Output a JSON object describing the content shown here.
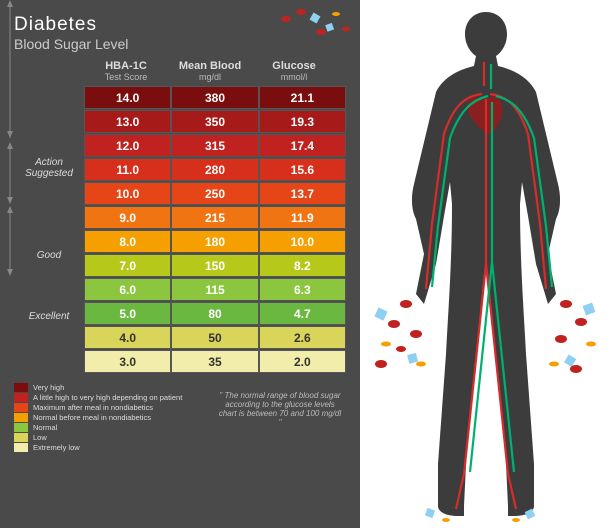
{
  "title": "Diabetes",
  "subtitle": "Blood Sugar Level",
  "columns": [
    {
      "h1": "HBA-1C",
      "h2": "Test Score"
    },
    {
      "h1": "Mean Blood",
      "h2": "mg/dl"
    },
    {
      "h1": "Glucose",
      "h2": "mmol/l"
    }
  ],
  "categories": [
    "Action\nSuggested",
    "Good",
    "Excellent"
  ],
  "rows": [
    {
      "v": [
        "14.0",
        "380",
        "21.1"
      ],
      "c": "#7a0d0d",
      "darkText": false
    },
    {
      "v": [
        "13.0",
        "350",
        "19.3"
      ],
      "c": "#a61a1a",
      "darkText": false
    },
    {
      "v": [
        "12.0",
        "315",
        "17.4"
      ],
      "c": "#c0231f",
      "darkText": false
    },
    {
      "v": [
        "11.0",
        "280",
        "15.6"
      ],
      "c": "#d6301d",
      "darkText": false
    },
    {
      "v": [
        "10.0",
        "250",
        "13.7"
      ],
      "c": "#e64517",
      "darkText": false
    },
    {
      "v": [
        "9.0",
        "215",
        "11.9"
      ],
      "c": "#f07512",
      "darkText": false
    },
    {
      "v": [
        "8.0",
        "180",
        "10.0"
      ],
      "c": "#f5a000",
      "darkText": false
    },
    {
      "v": [
        "7.0",
        "150",
        "8.2"
      ],
      "c": "#b6c91a",
      "darkText": false
    },
    {
      "v": [
        "6.0",
        "115",
        "6.3"
      ],
      "c": "#8cc63f",
      "darkText": false
    },
    {
      "v": [
        "5.0",
        "80",
        "4.7"
      ],
      "c": "#6bb840",
      "darkText": false
    },
    {
      "v": [
        "4.0",
        "50",
        "2.6"
      ],
      "c": "#d9d45a",
      "darkText": true
    },
    {
      "v": [
        "3.0",
        "35",
        "2.0"
      ],
      "c": "#f2edaa",
      "darkText": true
    }
  ],
  "legend": [
    {
      "c": "#7a0d0d",
      "label": "Very high"
    },
    {
      "c": "#c0231f",
      "label": "A little high to very high depending on patient"
    },
    {
      "c": "#e64517",
      "label": "Maximum after meal in nondiabetics"
    },
    {
      "c": "#f5a000",
      "label": "Normal before meal in nondiabetics"
    },
    {
      "c": "#8cc63f",
      "label": "Normal"
    },
    {
      "c": "#d9d45a",
      "label": "Low"
    },
    {
      "c": "#f2edaa",
      "label": "Extremely low"
    }
  ],
  "footnote": "\" The normal range of blood sugar according to the glucose levels chart is between 70 and 100 mg/dl \"",
  "panel_bg": "#4a4a4a",
  "body_fill": "#3c3c3c",
  "artery_color": "#d62c2c",
  "vein_color": "#00b06e",
  "heart_color": "#8a1f1f"
}
